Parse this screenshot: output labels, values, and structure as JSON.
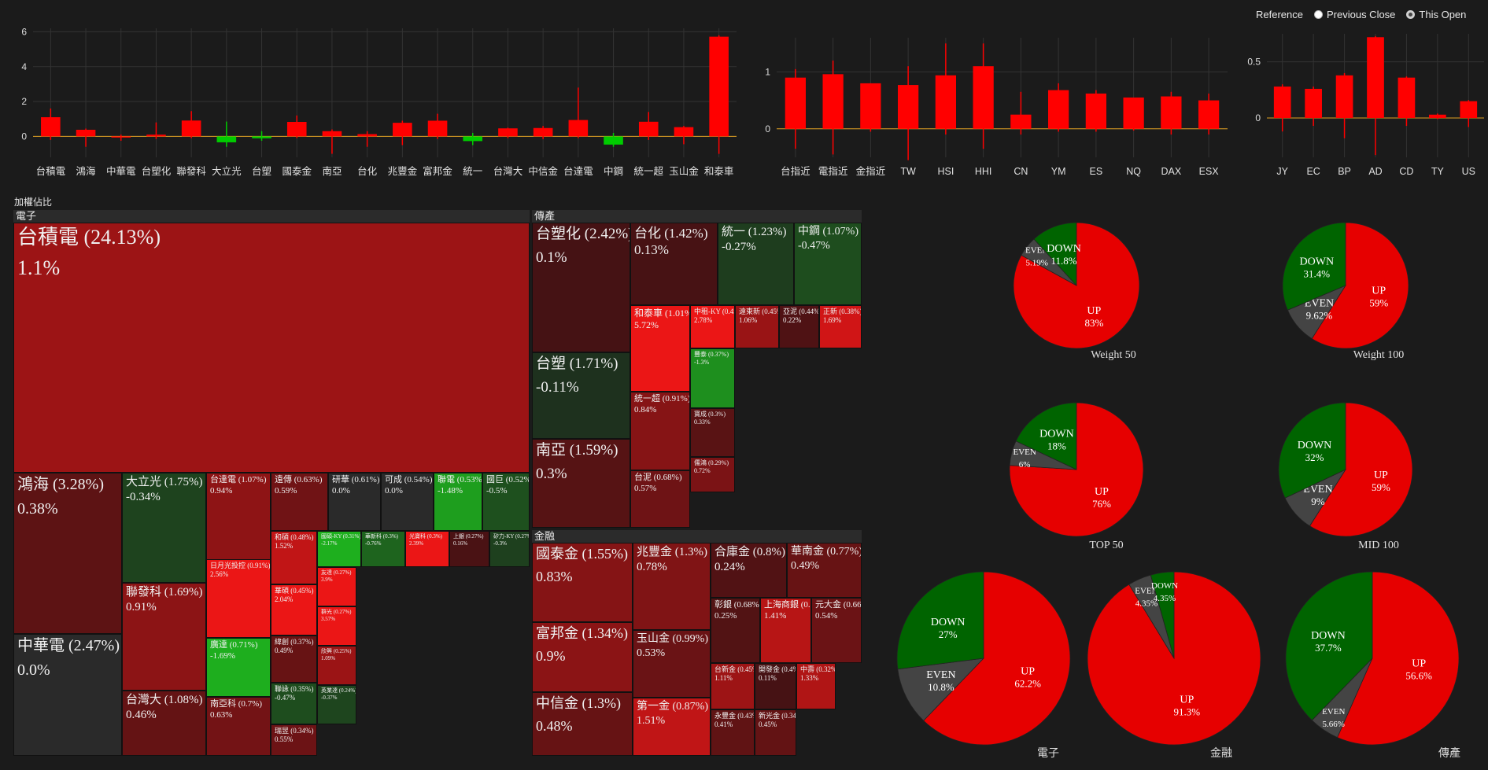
{
  "reference": {
    "label": "Reference",
    "options": [
      {
        "label": "Previous Close",
        "checked": false
      },
      {
        "label": "This Open",
        "checked": true
      }
    ]
  },
  "colors": {
    "up": "#ff0000",
    "down": "#00cc00",
    "even": "#444444",
    "pie_up": "#e60000",
    "pie_down": "#006400",
    "baseline": "#e0a020"
  },
  "chart_data": [
    {
      "type": "candlestick",
      "name": "stocks",
      "categories": [
        "台積電",
        "鴻海",
        "中華電",
        "台塑化",
        "聯發科",
        "大立光",
        "台塑",
        "國泰金",
        "南亞",
        "台化",
        "兆豐金",
        "富邦金",
        "統一",
        "台灣大",
        "中信金",
        "台達電",
        "中鋼",
        "統一超",
        "玉山金",
        "和泰車"
      ],
      "ylim": [
        -1.2,
        6.2
      ],
      "yticks": [
        0,
        2,
        4,
        6
      ],
      "open": [
        0,
        0,
        0,
        0,
        0,
        0,
        0,
        0,
        0,
        0,
        0,
        0,
        0,
        0,
        0,
        0,
        0,
        0,
        0,
        0
      ],
      "close": [
        1.1,
        0.38,
        0.0,
        0.1,
        0.91,
        -0.34,
        -0.11,
        0.83,
        0.3,
        0.13,
        0.78,
        0.9,
        -0.27,
        0.46,
        0.48,
        0.94,
        -0.47,
        0.84,
        0.53,
        5.72
      ],
      "high": [
        1.6,
        0.45,
        0.1,
        0.8,
        1.45,
        0.85,
        0.3,
        1.2,
        0.4,
        0.3,
        0.9,
        1.3,
        0.2,
        0.5,
        0.6,
        2.8,
        0.2,
        1.4,
        0.6,
        5.8
      ],
      "low": [
        -0.2,
        -0.6,
        -0.25,
        -0.15,
        -0.1,
        -0.6,
        -0.25,
        -0.1,
        -1.0,
        -0.6,
        -0.5,
        -0.15,
        -0.5,
        -0.1,
        -0.15,
        -0.1,
        -0.6,
        -0.2,
        -0.45,
        -1.0
      ]
    },
    {
      "type": "candlestick",
      "name": "futures",
      "categories": [
        "台指近",
        "電指近",
        "金指近",
        "TW",
        "HSI",
        "HHI",
        "CN",
        "YM",
        "ES",
        "NQ",
        "DAX",
        "ESX"
      ],
      "ylim": [
        -0.5,
        1.6
      ],
      "yticks": [
        0,
        1
      ],
      "open": [
        0,
        0,
        0,
        0,
        0,
        0,
        0,
        0,
        0,
        0,
        0,
        0
      ],
      "close": [
        0.9,
        0.96,
        0.8,
        0.77,
        0.94,
        1.1,
        0.25,
        0.68,
        0.62,
        0.55,
        0.57,
        0.5
      ],
      "high": [
        1.05,
        1.2,
        0.8,
        1.1,
        1.5,
        1.5,
        0.65,
        0.8,
        0.68,
        0.55,
        0.65,
        0.62
      ],
      "low": [
        -0.35,
        -0.45,
        -0.05,
        -0.55,
        -0.1,
        -0.35,
        -0.1,
        -0.05,
        -0.05,
        -0.03,
        -0.1,
        -0.1
      ]
    },
    {
      "type": "candlestick",
      "name": "currency",
      "categories": [
        "JY",
        "EC",
        "BP",
        "AD",
        "CD",
        "TY",
        "US"
      ],
      "ylim": [
        -0.35,
        0.75
      ],
      "yticks": [
        0,
        0.5
      ],
      "open": [
        0,
        0,
        0,
        0,
        0,
        0,
        0
      ],
      "close": [
        0.28,
        0.26,
        0.38,
        0.72,
        0.36,
        0.03,
        0.15
      ],
      "high": [
        0.3,
        0.28,
        0.4,
        0.73,
        0.37,
        0.04,
        0.16
      ],
      "low": [
        -0.12,
        -0.07,
        -0.18,
        -0.33,
        -0.07,
        -0.01,
        -0.08
      ]
    },
    {
      "type": "pie",
      "name": "Weight 50",
      "slices": [
        {
          "label": "UP",
          "value": 83,
          "text": "83%"
        },
        {
          "label": "EVEN",
          "value": 5.19,
          "text": "5.19%"
        },
        {
          "label": "DOWN",
          "value": 11.8,
          "text": "11.8%"
        }
      ]
    },
    {
      "type": "pie",
      "name": "Weight 100",
      "slices": [
        {
          "label": "UP",
          "value": 59,
          "text": "59%"
        },
        {
          "label": "EVEN",
          "value": 9.62,
          "text": "9.62%"
        },
        {
          "label": "DOWN",
          "value": 31.4,
          "text": "31.4%"
        }
      ]
    },
    {
      "type": "pie",
      "name": "TOP 50",
      "slices": [
        {
          "label": "UP",
          "value": 76,
          "text": "76%"
        },
        {
          "label": "EVEN",
          "value": 6,
          "text": "6%"
        },
        {
          "label": "DOWN",
          "value": 18,
          "text": "18%"
        }
      ]
    },
    {
      "type": "pie",
      "name": "MID 100",
      "slices": [
        {
          "label": "UP",
          "value": 59,
          "text": "59%"
        },
        {
          "label": "EVEN",
          "value": 9,
          "text": "9%"
        },
        {
          "label": "DOWN",
          "value": 32,
          "text": "32%"
        }
      ]
    },
    {
      "type": "pie",
      "name": "電子",
      "slices": [
        {
          "label": "UP",
          "value": 62.2,
          "text": "62.2%"
        },
        {
          "label": "EVEN",
          "value": 10.8,
          "text": "10.8%"
        },
        {
          "label": "DOWN",
          "value": 27,
          "text": "27%"
        }
      ]
    },
    {
      "type": "pie",
      "name": "金融",
      "slices": [
        {
          "label": "UP",
          "value": 91.3,
          "text": "91.3%"
        },
        {
          "label": "EVEN",
          "value": 4.35,
          "text": "4.35%"
        },
        {
          "label": "DOWN",
          "value": 4.35,
          "text": "4.35%"
        }
      ]
    },
    {
      "type": "pie",
      "name": "傳產",
      "slices": [
        {
          "label": "UP",
          "value": 56.6,
          "text": "56.6%"
        },
        {
          "label": "EVEN",
          "value": 5.66,
          "text": "5.66%"
        },
        {
          "label": "DOWN",
          "value": 37.7,
          "text": "37.7%"
        }
      ]
    }
  ],
  "treemap": {
    "title": "加權佔比",
    "sectors": [
      {
        "name": "電子",
        "tiles": [
          {
            "name": "台積電 (24.13%)",
            "value": "1.1%",
            "change": 1.1
          },
          {
            "name": "鴻海 (3.28%)",
            "value": "0.38%",
            "change": 0.38
          },
          {
            "name": "中華電 (2.47%)",
            "value": "0.0%",
            "change": 0.0
          },
          {
            "name": "大立光 (1.75%)",
            "value": "-0.34%",
            "change": -0.34
          },
          {
            "name": "聯發科 (1.69%)",
            "value": "0.91%",
            "change": 0.91
          },
          {
            "name": "台灣大 (1.08%)",
            "value": "0.46%",
            "change": 0.46
          },
          {
            "name": "台達電 (1.07%)",
            "value": "0.94%",
            "change": 0.94
          },
          {
            "name": "日月光投控 (0.91%)",
            "value": "2.56%",
            "change": 2.56
          },
          {
            "name": "廣達 (0.71%)",
            "value": "-1.69%",
            "change": -1.69
          },
          {
            "name": "南亞科 (0.7%)",
            "value": "0.63%",
            "change": 0.63
          },
          {
            "name": "遠傳 (0.63%)",
            "value": "0.59%",
            "change": 0.59
          },
          {
            "name": "研華 (0.61%)",
            "value": "0.0%",
            "change": 0.0
          },
          {
            "name": "可成 (0.54%)",
            "value": "0.0%",
            "change": 0.0
          },
          {
            "name": "聯電 (0.53%)",
            "value": "-1.48%",
            "change": -1.48
          },
          {
            "name": "國巨 (0.52%)",
            "value": "-0.5%",
            "change": -0.5
          },
          {
            "name": "和碩 (0.48%)",
            "value": "1.52%",
            "change": 1.52
          },
          {
            "name": "華碩 (0.45%)",
            "value": "2.04%",
            "change": 2.04
          },
          {
            "name": "緯創 (0.37%)",
            "value": "0.49%",
            "change": 0.49
          },
          {
            "name": "聯詠 (0.35%)",
            "value": "-0.47%",
            "change": -0.47
          },
          {
            "name": "瑞昱 (0.34%)",
            "value": "0.55%",
            "change": 0.55
          },
          {
            "name": "國碩-KY (0.31%)",
            "value": "-2.17%",
            "change": -2.17
          },
          {
            "name": "華新科 (0.3%)",
            "value": "-0.76%",
            "change": -0.76
          },
          {
            "name": "光寶科 (0.3%)",
            "value": "2.39%",
            "change": 2.39
          },
          {
            "name": "上銀 (0.27%)",
            "value": "0.16%",
            "change": 0.16
          },
          {
            "name": "矽力-KY (0.27%)",
            "value": "-0.3%",
            "change": -0.3
          },
          {
            "name": "友達 (0.27%)",
            "value": "3.9%",
            "change": 3.9
          },
          {
            "name": "群光 (0.27%)",
            "value": "3.57%",
            "change": 3.57
          },
          {
            "name": "欣興 (0.25%)",
            "value": "1.09%",
            "change": 1.09
          },
          {
            "name": "英業達 (0.24%)",
            "value": "-0.37%",
            "change": -0.37
          }
        ]
      },
      {
        "name": "傳產",
        "tiles": [
          {
            "name": "台塑化 (2.42%)",
            "value": "0.1%",
            "change": 0.1
          },
          {
            "name": "台化 (1.42%)",
            "value": "0.13%",
            "change": 0.13
          },
          {
            "name": "統一 (1.23%)",
            "value": "-0.27%",
            "change": -0.27
          },
          {
            "name": "中鋼 (1.07%)",
            "value": "-0.47%",
            "change": -0.47
          },
          {
            "name": "台塑 (1.71%)",
            "value": "-0.11%",
            "change": -0.11
          },
          {
            "name": "南亞 (1.59%)",
            "value": "0.3%",
            "change": 0.3
          },
          {
            "name": "和泰車 (1.01%)",
            "value": "5.72%",
            "change": 5.72
          },
          {
            "name": "中租-KY (0.45%)",
            "value": "2.78%",
            "change": 2.78
          },
          {
            "name": "遠東新 (0.45%)",
            "value": "1.06%",
            "change": 1.06
          },
          {
            "name": "亞泥 (0.44%)",
            "value": "0.22%",
            "change": 0.22
          },
          {
            "name": "正新 (0.38%)",
            "value": "1.69%",
            "change": 1.69
          },
          {
            "name": "統一超 (0.91%)",
            "value": "0.84%",
            "change": 0.84
          },
          {
            "name": "台泥 (0.68%)",
            "value": "0.57%",
            "change": 0.57
          },
          {
            "name": "豐泰 (0.37%)",
            "value": "-1.3%",
            "change": -1.3
          },
          {
            "name": "寶成 (0.3%)",
            "value": "0.33%",
            "change": 0.33
          },
          {
            "name": "儒鴻 (0.29%)",
            "value": "0.72%",
            "change": 0.72
          }
        ]
      },
      {
        "name": "金融",
        "tiles": [
          {
            "name": "國泰金 (1.55%)",
            "value": "0.83%",
            "change": 0.83
          },
          {
            "name": "兆豐金 (1.3%)",
            "value": "0.78%",
            "change": 0.78
          },
          {
            "name": "合庫金 (0.8%)",
            "value": "0.24%",
            "change": 0.24
          },
          {
            "name": "華南金 (0.77%)",
            "value": "0.49%",
            "change": 0.49
          },
          {
            "name": "富邦金 (1.34%)",
            "value": "0.9%",
            "change": 0.9
          },
          {
            "name": "玉山金 (0.99%)",
            "value": "0.53%",
            "change": 0.53
          },
          {
            "name": "彰銀 (0.68%)",
            "value": "0.25%",
            "change": 0.25
          },
          {
            "name": "上海商銀 (0.66%)",
            "value": "1.41%",
            "change": 1.41
          },
          {
            "name": "元大金 (0.66%)",
            "value": "0.54%",
            "change": 0.54
          },
          {
            "name": "中信金 (1.3%)",
            "value": "0.48%",
            "change": 0.48
          },
          {
            "name": "第一金 (0.87%)",
            "value": "1.51%",
            "change": 1.51
          },
          {
            "name": "台新金 (0.45%)",
            "value": "1.11%",
            "change": 1.11
          },
          {
            "name": "開發金 (0.4%)",
            "value": "0.11%",
            "change": 0.11
          },
          {
            "name": "中壽 (0.32%)",
            "value": "1.33%",
            "change": 1.33
          },
          {
            "name": "永豐金 (0.43%)",
            "value": "0.41%",
            "change": 0.41
          },
          {
            "name": "新光金 (0.34%)",
            "value": "0.45%",
            "change": 0.45
          }
        ]
      }
    ]
  }
}
